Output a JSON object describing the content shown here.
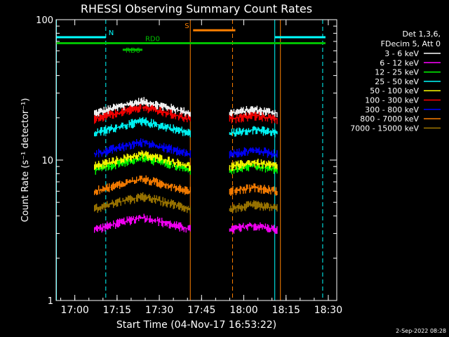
{
  "chart_data": {
    "type": "line",
    "title": "RHESSI Observing Summary Count Rates",
    "xlabel": "Start Time (04-Nov-17 16:53:22)",
    "ylabel": "Count Rate (s⁻¹ detector⁻¹)",
    "y_scale": "log",
    "ylim": [
      1,
      100
    ],
    "xlim": [
      "16:53:22",
      "18:33:00"
    ],
    "x_tick_labels": [
      "17:00",
      "17:15",
      "17:30",
      "17:45",
      "18:00",
      "18:15",
      "18:30"
    ],
    "y_tick_labels": [
      "1",
      "10",
      "100"
    ],
    "legend_header": [
      "Det 1,3,6,",
      "FDecim 5, Att 0"
    ],
    "legend_position": "right",
    "grid": false,
    "series": [
      {
        "name": "3 - 6 keV",
        "color": "#ffffff",
        "level": 21.5,
        "segments": [
          [
            "17:07",
            "17:41"
          ],
          [
            "17:55",
            "18:12"
          ]
        ]
      },
      {
        "name": "6 - 12 keV",
        "color": "#ff00ff",
        "level": 3.2,
        "segments": [
          [
            "17:07",
            "17:41"
          ],
          [
            "17:55",
            "18:12"
          ]
        ]
      },
      {
        "name": "12 - 25 keV",
        "color": "#00ff00",
        "level": 8.5,
        "segments": [
          [
            "17:07",
            "17:41"
          ],
          [
            "17:55",
            "18:12"
          ]
        ]
      },
      {
        "name": "25 - 50 keV",
        "color": "#00ffff",
        "level": 15.5,
        "segments": [
          [
            "17:07",
            "17:41"
          ],
          [
            "17:55",
            "18:12"
          ]
        ]
      },
      {
        "name": "50 - 100 keV",
        "color": "#ffff00",
        "level": 9.0,
        "segments": [
          [
            "17:07",
            "17:41"
          ],
          [
            "17:55",
            "18:12"
          ]
        ]
      },
      {
        "name": "100 - 300 keV",
        "color": "#ff0000",
        "level": 19.5,
        "segments": [
          [
            "17:07",
            "17:41"
          ],
          [
            "17:55",
            "18:12"
          ]
        ]
      },
      {
        "name": "300 - 800 keV",
        "color": "#0000ff",
        "level": 11.0,
        "segments": [
          [
            "17:07",
            "17:41"
          ],
          [
            "17:55",
            "18:12"
          ]
        ]
      },
      {
        "name": "800 - 7000 keV",
        "color": "#ff8000",
        "level": 6.0,
        "segments": [
          [
            "17:07",
            "17:41"
          ],
          [
            "17:55",
            "18:12"
          ]
        ]
      },
      {
        "name": "7000 - 15000 keV",
        "color": "#a07800",
        "level": 4.5,
        "segments": [
          [
            "17:07",
            "17:41"
          ],
          [
            "17:55",
            "18:12"
          ]
        ]
      }
    ],
    "annotations": [
      {
        "label": "N",
        "color": "#00ffff",
        "y": 75,
        "segments": [
          [
            "16:53:22",
            "17:11"
          ],
          [
            "18:11",
            "18:29"
          ]
        ]
      },
      {
        "label": "S",
        "color": "#ff8000",
        "y": 84,
        "segments": [
          [
            "17:42",
            "17:57"
          ]
        ]
      },
      {
        "label": "RD0",
        "color": "#00c000",
        "y": 68,
        "segments": [
          [
            "16:53:22",
            "18:29"
          ]
        ]
      },
      {
        "label": "RD6",
        "color": "#00c000",
        "y": 61,
        "segments": [
          [
            "17:17",
            "17:24"
          ]
        ]
      }
    ],
    "vertical_lines": [
      {
        "time": "16:53:30",
        "color": "#00ffff",
        "style": "solid"
      },
      {
        "time": "17:11",
        "color": "#00ffff",
        "style": "dashed"
      },
      {
        "time": "17:41",
        "color": "#ff8000",
        "style": "solid"
      },
      {
        "time": "17:56",
        "color": "#ff8000",
        "style": "dashed"
      },
      {
        "time": "18:11",
        "color": "#00ffff",
        "style": "solid"
      },
      {
        "time": "18:13",
        "color": "#ff8000",
        "style": "solid"
      },
      {
        "time": "18:28",
        "color": "#00ffff",
        "style": "dashed"
      }
    ]
  },
  "footer": {
    "date_stamp": "2-Sep-2022 08:28"
  }
}
